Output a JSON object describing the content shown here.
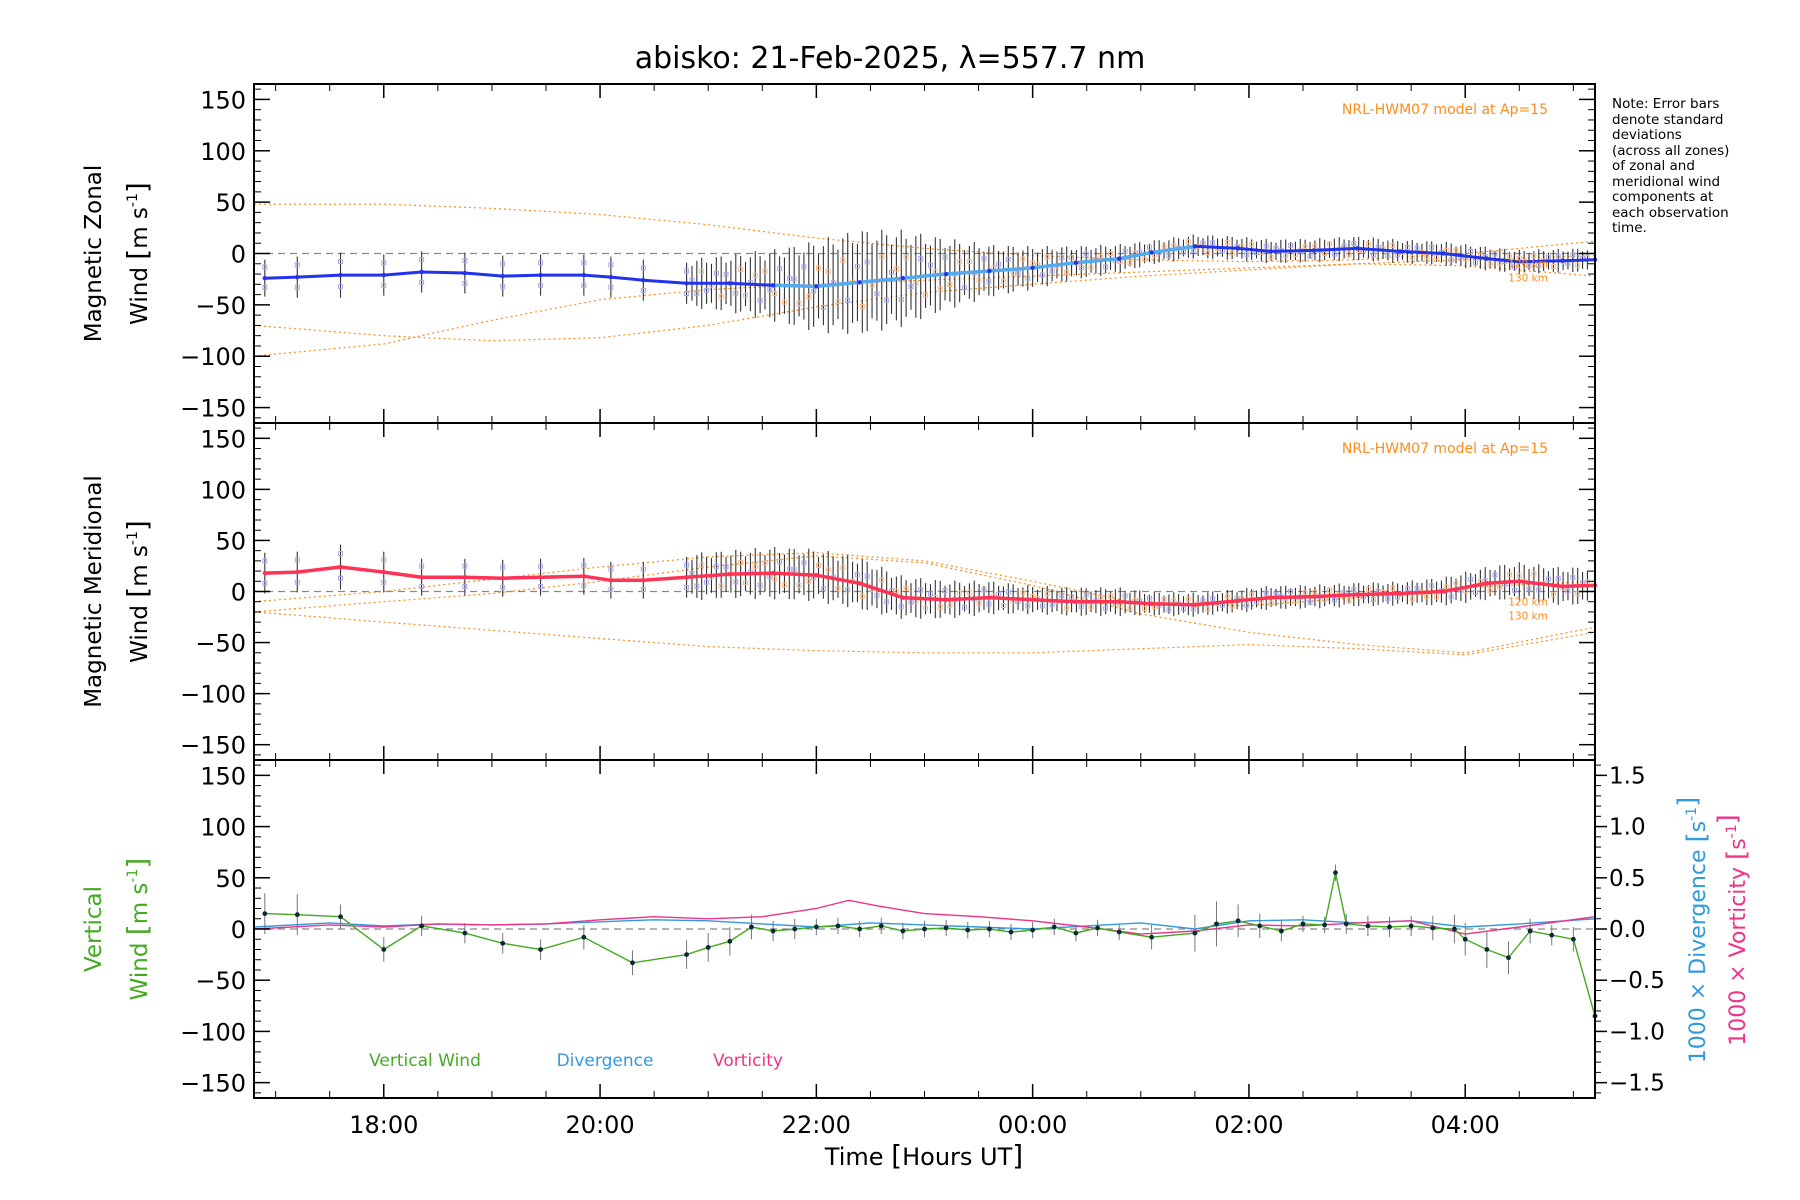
{
  "title": "abisko: 21-Feb-2025, λ=557.7 nm",
  "note_lines": [
    "Note: Error bars",
    "denote standard",
    "deviations",
    "(across all zones)",
    "of zonal and",
    "meridional wind",
    "components at",
    "each observation",
    "time."
  ],
  "colors": {
    "axis": "#000000",
    "model": "#ff8c1a",
    "zonal_mean": "#2233ee",
    "zonal_mean_light": "#55aaee",
    "meridional_mean": "#ff3355",
    "vertical": "#44aa22",
    "divergence": "#3399dd",
    "vorticity": "#ee3388",
    "zone_points": "#a9a9ee",
    "zone_points2": "#ffbb88",
    "error_bar": "#333333",
    "zero_line": "#888888"
  },
  "x_axis": {
    "label_parts": [
      "Time ",
      "[",
      "Hours UT",
      "]"
    ],
    "range_hours": [
      16.8,
      29.2
    ],
    "ticks": [
      18,
      20,
      22,
      24,
      26,
      28
    ],
    "tick_labels": [
      "18:00",
      "20:00",
      "22:00",
      "00:00",
      "02:00",
      "04:00"
    ]
  },
  "panels": [
    {
      "id": "zonal",
      "ylabel_line1": "Magnetic Zonal",
      "ylabel_line2": "Wind",
      "unit_open": "[",
      "unit_m": "m",
      "unit_s": "s",
      "unit_exp": "-1",
      "unit_close": "]",
      "model_label": "NRL-HWM07 model at Ap=15",
      "model_alt_labels": [
        "120 km",
        "130 km"
      ],
      "yticks": [
        150,
        100,
        50,
        0,
        -50,
        -100,
        -150
      ],
      "ylim": [
        -165,
        165
      ]
    },
    {
      "id": "meridional",
      "ylabel_line1": "Magnetic Meridional",
      "ylabel_line2": "Wind",
      "unit_open": "[",
      "unit_m": "m",
      "unit_s": "s",
      "unit_exp": "-1",
      "unit_close": "]",
      "model_label": "NRL-HWM07 model at Ap=15",
      "model_alt_labels": [
        "120 km",
        "130 km"
      ],
      "yticks": [
        150,
        100,
        50,
        0,
        -50,
        -100,
        -150
      ],
      "ylim": [
        -165,
        165
      ]
    },
    {
      "id": "vertical",
      "ylabel_line1": "Vertical",
      "ylabel_line2": "Wind",
      "unit_open": "[",
      "unit_m": "m",
      "unit_s": "s",
      "unit_exp": "-1",
      "unit_close": "]",
      "yticks": [
        150,
        100,
        50,
        0,
        -50,
        -100,
        -150
      ],
      "ylim": [
        -165,
        165
      ],
      "right_ticks": [
        1.5,
        1.0,
        0.5,
        0.0,
        -0.5,
        -1.0,
        -1.5
      ],
      "right_tick_labels": [
        "1.5",
        "1.0",
        "0.5",
        "0.0",
        "−0.5",
        "−1.0",
        "−1.5"
      ],
      "right_label_div": "1000 × Divergence",
      "right_label_vor": "1000 × Vorticity",
      "right_unit_open": "[",
      "right_unit_s": "s",
      "right_unit_exp": "-1",
      "right_unit_close": "]",
      "legend": [
        "Vertical Wind",
        "Divergence",
        "Vorticity"
      ]
    }
  ],
  "chart_data": [
    {
      "type": "line",
      "title": "abisko: 21-Feb-2025, λ=557.7 nm",
      "panel": "Magnetic Zonal Wind",
      "xlabel": "Time [Hours UT]",
      "ylabel": "Magnetic Zonal Wind [m s-1]",
      "ylim": [
        -165,
        165
      ],
      "x_unit": "hours UT (24 = 00:00 next day)",
      "series": [
        {
          "name": "",
          "x": [
            16.9,
            17.2,
            17.6,
            18.0,
            18.35,
            18.75,
            19.1,
            19.45,
            19.85,
            20.1,
            20.4,
            20.8,
            21.2,
            21.6,
            22.0,
            22.4,
            22.8,
            23.2,
            23.6,
            24.0,
            24.4,
            24.8,
            25.1,
            25.5,
            25.9,
            26.2,
            26.6,
            27.0,
            27.4,
            27.8,
            28.2,
            28.5,
            28.9,
            29.2
          ],
          "y": [
            -24,
            -23,
            -21,
            -21,
            -18,
            -19,
            -22,
            -21,
            -21,
            -23,
            -26,
            -29,
            -29,
            -31,
            -32,
            -28,
            -24,
            -20,
            -17,
            -14,
            -9,
            -5,
            1,
            7,
            5,
            2,
            3,
            5,
            2,
            0,
            -5,
            -8,
            -7,
            -6
          ]
        }
      ],
      "error_bar_half_width": [
        18,
        20,
        22,
        20,
        20,
        20,
        20,
        20,
        20,
        20,
        20,
        20,
        24,
        30,
        38,
        44,
        40,
        30,
        22,
        18,
        14,
        12,
        10,
        10,
        10,
        10,
        10,
        10,
        10,
        10,
        10,
        10,
        10,
        10
      ],
      "model_curves_label": "NRL-HWM07 model at Ap=15",
      "model_curves": [
        {
          "name": "120 km",
          "x": [
            16.8,
            18.0,
            19.0,
            20.0,
            21.0,
            22.0,
            23.0,
            24.0,
            25.0,
            26.0,
            27.0,
            28.0,
            29.2
          ],
          "y": [
            -70,
            -80,
            -85,
            -82,
            -70,
            -52,
            -38,
            -30,
            -22,
            -16,
            -10,
            -12,
            -22
          ]
        },
        {
          "name": "130 km",
          "x": [
            16.8,
            18.0,
            19.0,
            20.0,
            21.0,
            22.0,
            23.0,
            24.0,
            25.0,
            26.0,
            27.0,
            28.0,
            29.2
          ],
          "y": [
            -100,
            -88,
            -65,
            -45,
            -35,
            -30,
            -26,
            -22,
            -18,
            -14,
            -10,
            -6,
            -2
          ]
        },
        {
          "name": "",
          "x": [
            16.8,
            18.0,
            19.0,
            20.0,
            21.0,
            22.0,
            23.0,
            24.0,
            25.0,
            26.0,
            27.0,
            28.0,
            29.2
          ],
          "y": [
            48,
            48,
            44,
            38,
            28,
            15,
            5,
            -2,
            -6,
            -8,
            -6,
            0,
            12
          ]
        }
      ]
    },
    {
      "type": "line",
      "panel": "Magnetic Meridional Wind",
      "xlabel": "Time [Hours UT]",
      "ylabel": "Magnetic Meridional Wind [m s-1]",
      "ylim": [
        -165,
        165
      ],
      "series": [
        {
          "name": "",
          "x": [
            16.9,
            17.2,
            17.6,
            18.0,
            18.35,
            18.75,
            19.1,
            19.45,
            19.85,
            20.1,
            20.4,
            20.8,
            21.2,
            21.6,
            22.0,
            22.4,
            22.8,
            23.2,
            23.6,
            24.0,
            24.4,
            24.8,
            25.1,
            25.5,
            25.9,
            26.2,
            26.6,
            27.0,
            27.4,
            27.8,
            28.2,
            28.5,
            28.9,
            29.2
          ],
          "y": [
            18,
            19,
            24,
            19,
            14,
            14,
            13,
            14,
            15,
            11,
            11,
            14,
            17,
            18,
            16,
            8,
            -6,
            -8,
            -6,
            -8,
            -10,
            -10,
            -12,
            -13,
            -9,
            -6,
            -5,
            -3,
            -2,
            0,
            8,
            10,
            5,
            6
          ]
        }
      ],
      "error_bar_half_width": [
        20,
        20,
        22,
        20,
        18,
        18,
        18,
        18,
        18,
        18,
        18,
        20,
        20,
        22,
        22,
        22,
        18,
        16,
        14,
        12,
        12,
        12,
        10,
        10,
        10,
        10,
        10,
        10,
        10,
        12,
        14,
        16,
        16,
        16
      ],
      "model_curves_label": "NRL-HWM07 model at Ap=15",
      "model_curves": [
        {
          "name": "120 km",
          "x": [
            16.8,
            18.0,
            19.0,
            20.0,
            21.0,
            22.0,
            23.0,
            24.0,
            25.0,
            26.0,
            27.0,
            28.0,
            29.2
          ],
          "y": [
            -10,
            0,
            12,
            24,
            34,
            38,
            30,
            10,
            -12,
            -14,
            -6,
            4,
            10
          ]
        },
        {
          "name": "130 km",
          "x": [
            16.8,
            18.0,
            19.0,
            20.0,
            21.0,
            22.0,
            23.0,
            24.0,
            25.0,
            26.0,
            27.0,
            28.0,
            29.2
          ],
          "y": [
            -20,
            -10,
            -2,
            10,
            24,
            35,
            28,
            6,
            -22,
            -40,
            -52,
            -60,
            -35
          ]
        },
        {
          "name": "",
          "x": [
            16.8,
            18.0,
            19.0,
            20.0,
            21.0,
            22.0,
            23.0,
            24.0,
            25.0,
            26.0,
            27.0,
            28.0,
            29.2
          ],
          "y": [
            -20,
            -30,
            -38,
            -46,
            -54,
            -58,
            -60,
            -60,
            -56,
            -52,
            -56,
            -62,
            -40
          ]
        }
      ]
    },
    {
      "type": "line",
      "panel": "Vertical Wind / Divergence / Vorticity",
      "xlabel": "Time [Hours UT]",
      "ylabel": "Vertical Wind [m s-1]",
      "y2label": "1000 × Divergence [s-1] / 1000 × Vorticity [s-1]",
      "ylim": [
        -165,
        165
      ],
      "y2lim": [
        -1.65,
        1.65
      ],
      "series": [
        {
          "name": "Vertical Wind",
          "axis": "left",
          "x": [
            16.9,
            17.2,
            17.6,
            18.0,
            18.35,
            18.75,
            19.1,
            19.45,
            19.85,
            20.3,
            20.8,
            21.0,
            21.2,
            21.4,
            21.6,
            21.8,
            22.0,
            22.2,
            22.4,
            22.6,
            22.8,
            23.0,
            23.2,
            23.4,
            23.6,
            23.8,
            24.0,
            24.2,
            24.4,
            24.6,
            24.8,
            25.1,
            25.5,
            25.7,
            25.9,
            26.1,
            26.3,
            26.5,
            26.7,
            26.8,
            26.9,
            27.1,
            27.3,
            27.5,
            27.7,
            27.9,
            28.0,
            28.2,
            28.4,
            28.6,
            28.8,
            29.0,
            29.2
          ],
          "y": [
            15,
            14,
            12,
            -20,
            3,
            -4,
            -14,
            -20,
            -8,
            -33,
            -25,
            -18,
            -12,
            2,
            -2,
            0,
            2,
            3,
            0,
            3,
            -2,
            0,
            1,
            -1,
            0,
            -3,
            -1,
            2,
            -4,
            1,
            -3,
            -8,
            -4,
            5,
            8,
            3,
            -2,
            5,
            4,
            55,
            5,
            3,
            2,
            3,
            1,
            0,
            -10,
            -20,
            -28,
            -2,
            -6,
            -10,
            -85
          ]
        },
        {
          "name": "Divergence",
          "axis": "right",
          "x": [
            16.8,
            17.5,
            18.0,
            18.5,
            19.0,
            19.5,
            20.0,
            20.5,
            21.0,
            21.5,
            22.0,
            22.5,
            23.0,
            23.5,
            24.0,
            24.5,
            25.0,
            25.5,
            26.0,
            26.5,
            27.0,
            27.5,
            28.0,
            28.5,
            29.2
          ],
          "y": [
            0.02,
            0.06,
            0.03,
            0.05,
            0.04,
            0.05,
            0.07,
            0.09,
            0.08,
            0.05,
            0.02,
            0.06,
            0.04,
            0.02,
            0.0,
            0.03,
            0.06,
            0.0,
            0.08,
            0.09,
            0.06,
            0.08,
            0.02,
            0.05,
            0.1
          ]
        },
        {
          "name": "Vorticity",
          "axis": "right",
          "x": [
            16.8,
            17.5,
            18.0,
            18.5,
            19.0,
            19.5,
            20.0,
            20.5,
            21.0,
            21.5,
            22.0,
            22.3,
            22.6,
            23.0,
            23.5,
            24.0,
            24.5,
            25.0,
            25.5,
            26.0,
            26.5,
            27.0,
            27.5,
            28.0,
            28.5,
            29.2
          ],
          "y": [
            0.0,
            0.04,
            0.02,
            0.05,
            0.04,
            0.05,
            0.09,
            0.12,
            0.1,
            0.12,
            0.2,
            0.28,
            0.22,
            0.15,
            0.12,
            0.08,
            0.02,
            -0.05,
            -0.02,
            0.04,
            0.03,
            0.06,
            0.08,
            -0.05,
            0.02,
            0.12
          ]
        }
      ],
      "error_bar_half_width": [
        20,
        20,
        12,
        12,
        10,
        10,
        10,
        10,
        12,
        12,
        14,
        14,
        14,
        12,
        10,
        10,
        8,
        8,
        8,
        8,
        8,
        8,
        8,
        8,
        8,
        8,
        8,
        8,
        8,
        8,
        8,
        12,
        18,
        22,
        16,
        12,
        10,
        8,
        8,
        8,
        10,
        10,
        10,
        10,
        12,
        14,
        16,
        18,
        16,
        12,
        10,
        12,
        14
      ]
    }
  ]
}
